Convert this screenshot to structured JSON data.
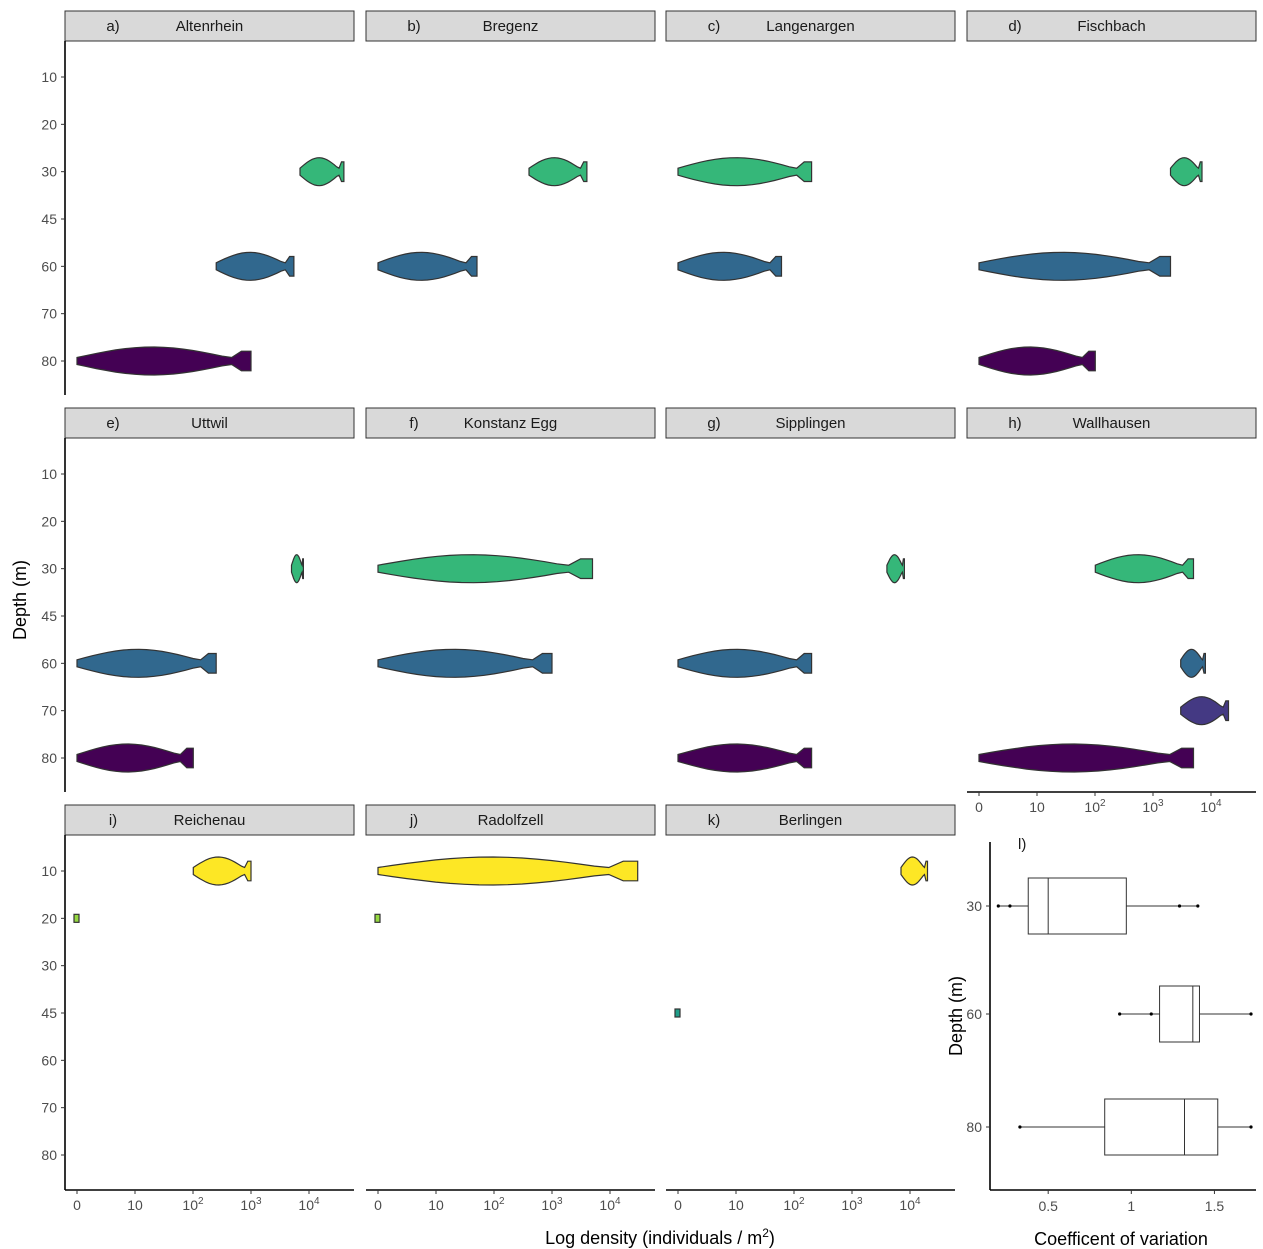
{
  "axis_titles": {
    "y": "Depth (m)",
    "x": "Log density (individuals / m²)",
    "x_prefix": "Log density (individuals / m",
    "x_sup": "2",
    "x_suffix": ")",
    "boxplot_x": "Coefficent of variation",
    "boxplot_y": "Depth (m)"
  },
  "depth_ticks": [
    "10",
    "20",
    "30",
    "45",
    "60",
    "70",
    "80"
  ],
  "density_ticks": [
    {
      "base": "0",
      "exp": ""
    },
    {
      "base": "10",
      "exp": ""
    },
    {
      "base": "10",
      "exp": "2"
    },
    {
      "base": "10",
      "exp": "3"
    },
    {
      "base": "10",
      "exp": "4"
    }
  ],
  "colors": {
    "10": "#fde725",
    "20": "#95d840",
    "30": "#35b779",
    "45": "#1f9e89",
    "60": "#31688e",
    "70": "#443983",
    "80": "#440154"
  },
  "chart_data": [
    {
      "type": "violin",
      "panel": "a)",
      "site": "Altenrhein",
      "x_scale": "log10(density + 1)",
      "depth_groups": [
        {
          "depth": 30,
          "density_min": 7000,
          "density_max": 40000
        },
        {
          "depth": 60,
          "density_min": 250,
          "density_max": 5500
        },
        {
          "depth": 80,
          "density_min": 0,
          "density_max": 1000
        }
      ]
    },
    {
      "type": "violin",
      "panel": "b)",
      "site": "Bregenz",
      "depth_groups": [
        {
          "depth": 30,
          "density_min": 400,
          "density_max": 4000
        },
        {
          "depth": 60,
          "density_min": 0,
          "density_max": 50
        }
      ]
    },
    {
      "type": "violin",
      "panel": "c)",
      "site": "Langenargen",
      "depth_groups": [
        {
          "depth": 30,
          "density_min": 0,
          "density_max": 200
        },
        {
          "depth": 60,
          "density_min": 0,
          "density_max": 60
        }
      ]
    },
    {
      "type": "violin",
      "panel": "d)",
      "site": "Fischbach",
      "depth_groups": [
        {
          "depth": 30,
          "density_min": 2000,
          "density_max": 7000
        },
        {
          "depth": 60,
          "density_min": 0,
          "density_max": 2000
        },
        {
          "depth": 80,
          "density_min": 0,
          "density_max": 100
        }
      ]
    },
    {
      "type": "violin",
      "panel": "e)",
      "site": "Uttwil",
      "depth_groups": [
        {
          "depth": 30,
          "density_min": 5000,
          "density_max": 8000
        },
        {
          "depth": 60,
          "density_min": 0,
          "density_max": 250
        },
        {
          "depth": 80,
          "density_min": 0,
          "density_max": 100
        }
      ]
    },
    {
      "type": "violin",
      "panel": "f)",
      "site": "Konstanz Egg",
      "depth_groups": [
        {
          "depth": 30,
          "density_min": 0,
          "density_max": 5000
        },
        {
          "depth": 60,
          "density_min": 0,
          "density_max": 1000
        }
      ]
    },
    {
      "type": "violin",
      "panel": "g)",
      "site": "Sipplingen",
      "depth_groups": [
        {
          "depth": 30,
          "density_min": 4000,
          "density_max": 8000
        },
        {
          "depth": 60,
          "density_min": 0,
          "density_max": 200
        },
        {
          "depth": 80,
          "density_min": 0,
          "density_max": 200
        }
      ]
    },
    {
      "type": "violin",
      "panel": "h)",
      "site": "Wallhausen",
      "depth_groups": [
        {
          "depth": 30,
          "density_min": 100,
          "density_max": 5000
        },
        {
          "depth": 60,
          "density_min": 3000,
          "density_max": 8000
        },
        {
          "depth": 70,
          "density_min": 3000,
          "density_max": 20000
        },
        {
          "depth": 80,
          "density_min": 0,
          "density_max": 5000
        }
      ]
    },
    {
      "type": "violin",
      "panel": "i)",
      "site": "Reichenau",
      "depth_groups": [
        {
          "depth": 10,
          "density_min": 100,
          "density_max": 1000
        },
        {
          "depth": 20,
          "density_min": 0,
          "density_max": 0
        }
      ]
    },
    {
      "type": "violin",
      "panel": "j)",
      "site": "Radolfzell",
      "depth_groups": [
        {
          "depth": 10,
          "density_min": 0,
          "density_max": 30000
        },
        {
          "depth": 20,
          "density_min": 0,
          "density_max": 0
        }
      ]
    },
    {
      "type": "violin",
      "panel": "k)",
      "site": "Berlingen",
      "depth_groups": [
        {
          "depth": 10,
          "density_min": 7000,
          "density_max": 20000
        },
        {
          "depth": 45,
          "density_min": 0,
          "density_max": 0
        }
      ]
    },
    {
      "type": "boxplot",
      "panel": "l)",
      "xlabel": "Coefficent of variation",
      "ylabel": "Depth (m)",
      "x_ticks": [
        "0.5",
        "1",
        "1.5"
      ],
      "y_ticks": [
        "30",
        "60",
        "80"
      ],
      "xlim": [
        0.15,
        1.75
      ],
      "boxes": [
        {
          "depth": 30,
          "whisker_low": 0.2,
          "q1": 0.38,
          "median": 0.5,
          "q3": 0.97,
          "whisker_high": 1.4,
          "points": [
            0.2,
            0.27,
            1.29,
            1.4
          ]
        },
        {
          "depth": 60,
          "whisker_low": 0.93,
          "q1": 1.17,
          "median": 1.37,
          "q3": 1.41,
          "whisker_high": 1.72,
          "points": [
            0.93,
            1.12,
            1.72
          ]
        },
        {
          "depth": 80,
          "whisker_low": 0.33,
          "q1": 0.84,
          "median": 1.32,
          "q3": 1.52,
          "whisker_high": 1.72,
          "points": [
            0.33,
            1.72
          ]
        }
      ]
    }
  ]
}
